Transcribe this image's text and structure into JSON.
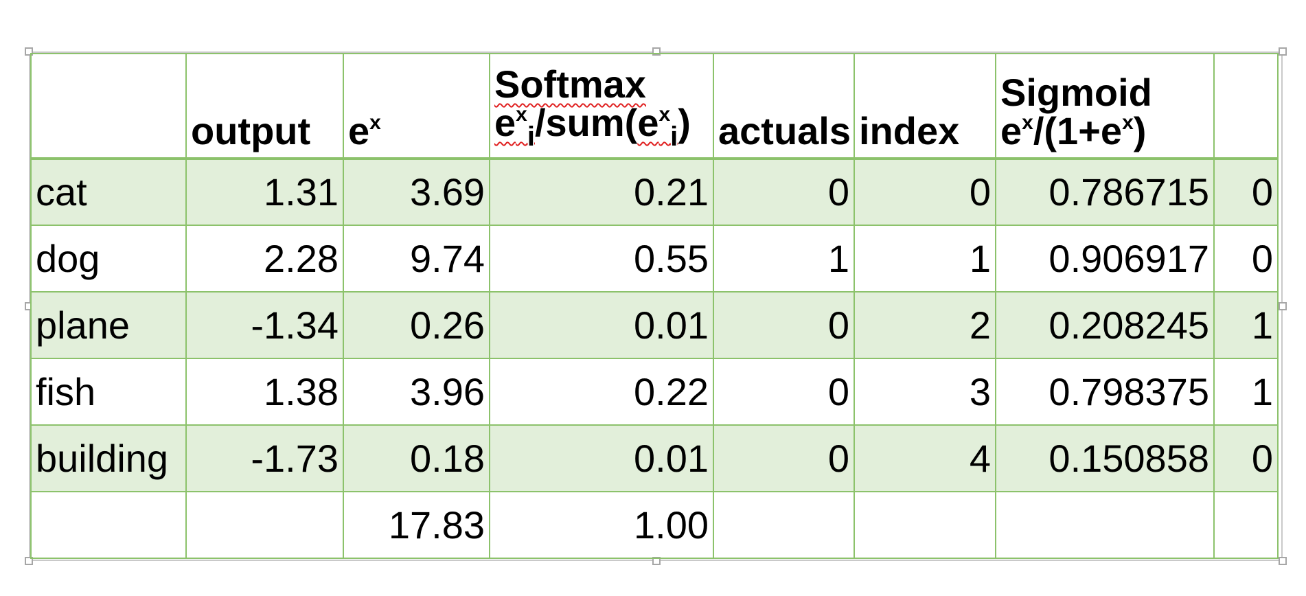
{
  "headers": {
    "output": "output",
    "ex_base": "e",
    "ex_sup": "x",
    "softmax_title": "Softmax",
    "softmax_formula": {
      "e1": "e",
      "x1": "x",
      "i1": "i",
      "mid": "/sum(",
      "e2": "e",
      "x2": "x",
      "i2": "i",
      "close": ")"
    },
    "actuals": "actuals",
    "index": "index",
    "sigmoid_title": "Sigmoid",
    "sigmoid_formula": {
      "e1": "e",
      "x1": "x",
      "mid": "/(1+",
      "e2": "e",
      "x2": "x",
      "close": ")"
    }
  },
  "rows": [
    {
      "label": "cat",
      "output": "1.31",
      "ex": "3.69",
      "softmax": "0.21",
      "actuals": "0",
      "index": "0",
      "sigmoid": "0.786715",
      "last": "0"
    },
    {
      "label": "dog",
      "output": "2.28",
      "ex": "9.74",
      "softmax": "0.55",
      "actuals": "1",
      "index": "1",
      "sigmoid": "0.906917",
      "last": "0"
    },
    {
      "label": "plane",
      "output": "-1.34",
      "ex": "0.26",
      "softmax": "0.01",
      "actuals": "0",
      "index": "2",
      "sigmoid": "0.208245",
      "last": "1"
    },
    {
      "label": "fish",
      "output": "1.38",
      "ex": "3.96",
      "softmax": "0.22",
      "actuals": "0",
      "index": "3",
      "sigmoid": "0.798375",
      "last": "1"
    },
    {
      "label": "building",
      "output": "-1.73",
      "ex": "0.18",
      "softmax": "0.01",
      "actuals": "0",
      "index": "4",
      "sigmoid": "0.150858",
      "last": "0"
    }
  ],
  "totals": {
    "ex": "17.83",
    "softmax": "1.00"
  },
  "colors": {
    "border": "#8cc26b",
    "row_shade": "#e2efda",
    "spell_underline": "#e02020",
    "frame": "#c9c9c9"
  }
}
